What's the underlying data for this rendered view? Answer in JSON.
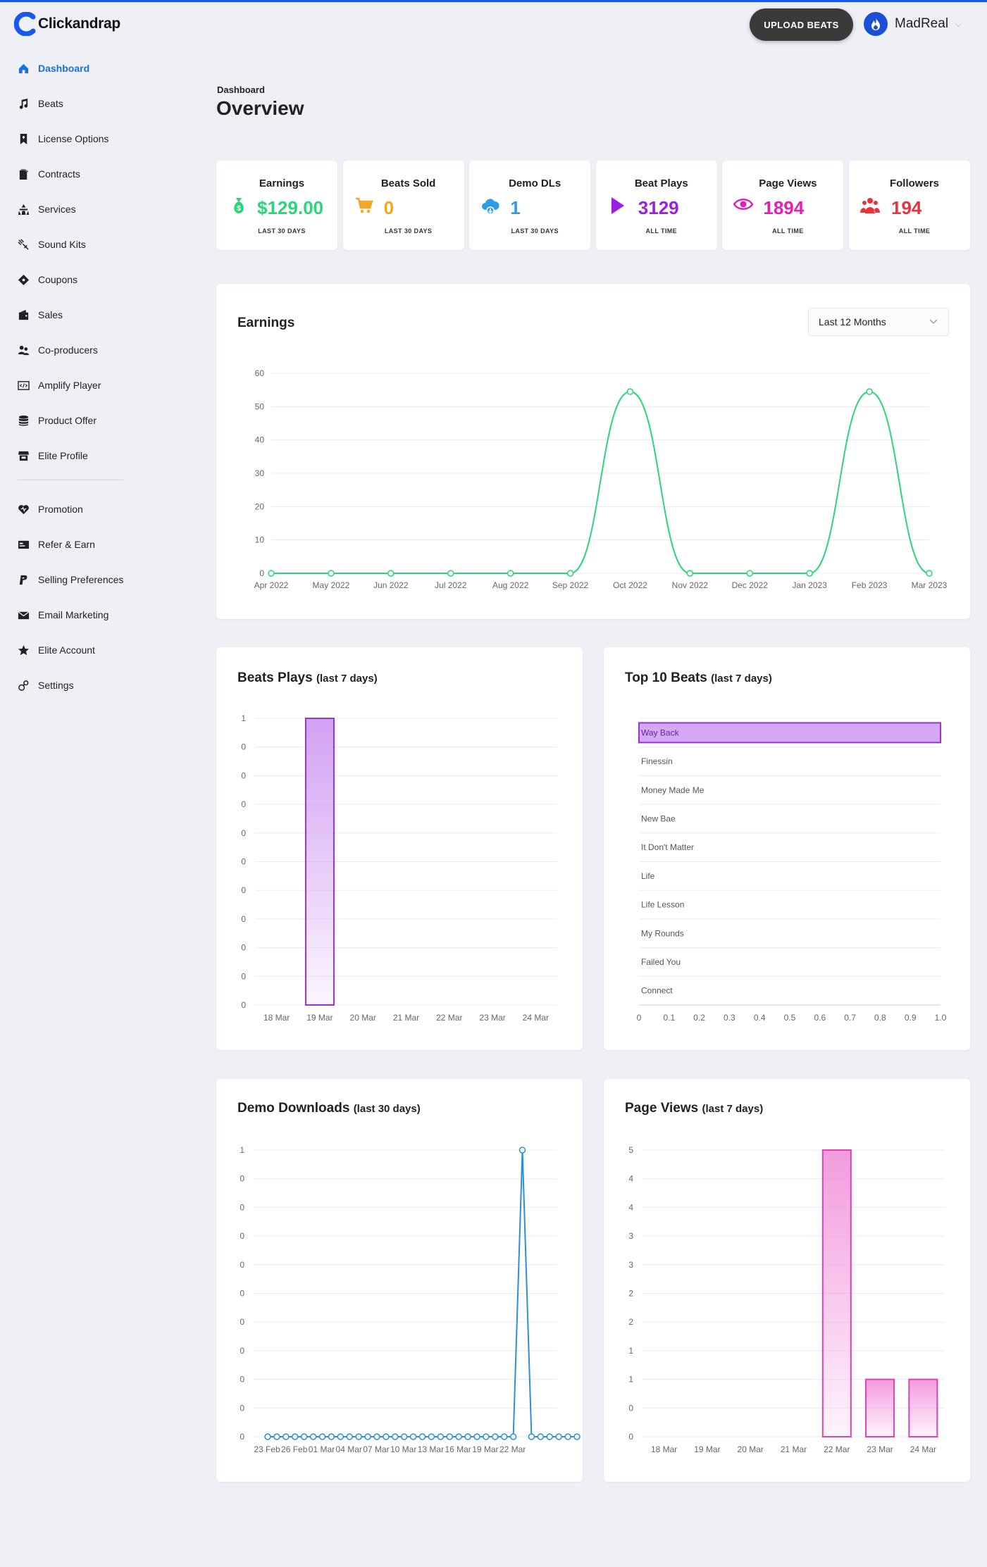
{
  "app": {
    "name": "Clickandrap"
  },
  "header": {
    "upload_label": "UPLOAD BEATS",
    "username": "MadReal"
  },
  "sidebar": {
    "items": [
      {
        "label": "Dashboard",
        "icon": "home-icon",
        "active": true
      },
      {
        "label": "Beats",
        "icon": "music-note-icon"
      },
      {
        "label": "License Options",
        "icon": "bookmark-icon"
      },
      {
        "label": "Contracts",
        "icon": "contract-icon"
      },
      {
        "label": "Services",
        "icon": "services-icon"
      },
      {
        "label": "Sound Kits",
        "icon": "sound-kit-icon"
      },
      {
        "label": "Coupons",
        "icon": "coupon-icon"
      },
      {
        "label": "Sales",
        "icon": "wallet-icon"
      },
      {
        "label": "Co-producers",
        "icon": "users-icon"
      },
      {
        "label": "Amplify Player",
        "icon": "code-icon"
      },
      {
        "label": "Product Offer",
        "icon": "database-icon"
      },
      {
        "label": "Elite Profile",
        "icon": "store-icon"
      }
    ],
    "items2": [
      {
        "label": "Promotion",
        "icon": "heart-icon"
      },
      {
        "label": "Refer & Earn",
        "icon": "card-icon"
      },
      {
        "label": "Selling Preferences",
        "icon": "paypal-icon"
      },
      {
        "label": "Email Marketing",
        "icon": "envelope-icon"
      },
      {
        "label": "Elite Account",
        "icon": "star-icon"
      },
      {
        "label": "Settings",
        "icon": "settings-icon"
      }
    ]
  },
  "page": {
    "breadcrumb": "Dashboard",
    "title": "Overview"
  },
  "stats": [
    {
      "label": "Earnings",
      "value": "$129.00",
      "sub": "LAST 30 DAYS",
      "color": "#2ed47a",
      "icon": "money-bag-icon"
    },
    {
      "label": "Beats Sold",
      "value": "0",
      "sub": "LAST 30 DAYS",
      "color": "#f5a623",
      "icon": "cart-icon"
    },
    {
      "label": "Demo DLs",
      "value": "1",
      "sub": "LAST 30 DAYS",
      "color": "#2d9ce8",
      "icon": "cloud-download-icon"
    },
    {
      "label": "Beat Plays",
      "value": "3129",
      "sub": "ALL TIME",
      "color": "#9b1fe0",
      "icon": "play-icon"
    },
    {
      "label": "Page Views",
      "value": "1894",
      "sub": "ALL TIME",
      "color": "#e020b8",
      "icon": "eye-icon"
    },
    {
      "label": "Followers",
      "value": "194",
      "sub": "ALL TIME",
      "color": "#e8323c",
      "icon": "followers-icon"
    }
  ],
  "earnings": {
    "title": "Earnings",
    "range_label": "Last 12 Months"
  },
  "beat_plays": {
    "title": "Beats Plays",
    "sub": "(last 7 days)"
  },
  "top_beats": {
    "title": "Top 10 Beats",
    "sub": "(last 7 days)"
  },
  "demo_downloads": {
    "title": "Demo Downloads",
    "sub": "(last 30 days)"
  },
  "page_views": {
    "title": "Page Views",
    "sub": "(last 7 days)"
  },
  "chart_data": [
    {
      "id": "earnings",
      "type": "line",
      "color": "#2ed47a",
      "categories": [
        "Apr 2022",
        "May 2022",
        "Jun 2022",
        "Jul 2022",
        "Aug 2022",
        "Sep 2022",
        "Oct 2022",
        "Nov 2022",
        "Dec 2022",
        "Jan 2023",
        "Feb 2023",
        "Mar 2023"
      ],
      "values": [
        0,
        0,
        0,
        0,
        0,
        0,
        54.5,
        0,
        0,
        0,
        54.5,
        0
      ],
      "ylim": [
        0,
        60
      ],
      "yticks": [
        "0",
        "10",
        "20",
        "30",
        "40",
        "50",
        "60"
      ],
      "grid": true
    },
    {
      "id": "beat_plays",
      "type": "bar",
      "color": "#9b30e0",
      "categories": [
        "18 Mar",
        "19 Mar",
        "20 Mar",
        "21 Mar",
        "22 Mar",
        "23 Mar",
        "24 Mar"
      ],
      "values": [
        0,
        1,
        0,
        0,
        0,
        0,
        0
      ],
      "ylim": [
        0,
        1
      ],
      "yticks": [
        "0",
        "0",
        "0",
        "0",
        "0",
        "0",
        "0",
        "0",
        "0",
        "0",
        "1"
      ],
      "grid": true
    },
    {
      "id": "top_beats",
      "type": "bar",
      "orientation": "horizontal",
      "color": "#9b30e0",
      "categories": [
        "Way Back",
        "Finessin",
        "Money Made Me",
        "New Bae",
        "It Don't Matter",
        "Life",
        "Life Lesson",
        "My Rounds",
        "Failed You",
        "Connect"
      ],
      "values": [
        1,
        0,
        0,
        0,
        0,
        0,
        0,
        0,
        0,
        0
      ],
      "xlim": [
        0,
        1
      ],
      "xticks": [
        "0",
        "0.1",
        "0.2",
        "0.3",
        "0.4",
        "0.5",
        "0.6",
        "0.7",
        "0.8",
        "0.9",
        "1.0"
      ],
      "grid": true
    },
    {
      "id": "demo_downloads",
      "type": "line",
      "color": "#2d8fd8",
      "x_labels": [
        "23 Feb",
        "26 Feb",
        "01 Mar",
        "04 Mar",
        "07 Mar",
        "10 Mar",
        "13 Mar",
        "16 Mar",
        "19 Mar",
        "22 Mar"
      ],
      "values": [
        0,
        0,
        0,
        0,
        0,
        0,
        0,
        0,
        0,
        0,
        0,
        0,
        0,
        0,
        0,
        0,
        0,
        0,
        0,
        0,
        0,
        0,
        0,
        0,
        0,
        0,
        0,
        0,
        1,
        0,
        0,
        0,
        0,
        0,
        0
      ],
      "ylim": [
        0,
        1
      ],
      "yticks": [
        "0",
        "0",
        "0",
        "0",
        "0",
        "0",
        "0",
        "0",
        "0",
        "0",
        "1"
      ],
      "grid": true
    },
    {
      "id": "page_views",
      "type": "bar",
      "color": "#e040b8",
      "categories": [
        "18 Mar",
        "19 Mar",
        "20 Mar",
        "21 Mar",
        "22 Mar",
        "23 Mar",
        "24 Mar"
      ],
      "values": [
        0,
        0,
        0,
        0,
        5,
        1,
        1
      ],
      "ylim": [
        0,
        5
      ],
      "yticks": [
        "0",
        "0",
        "1",
        "1",
        "2",
        "2",
        "3",
        "3",
        "4",
        "4",
        "5"
      ],
      "grid": true
    }
  ]
}
